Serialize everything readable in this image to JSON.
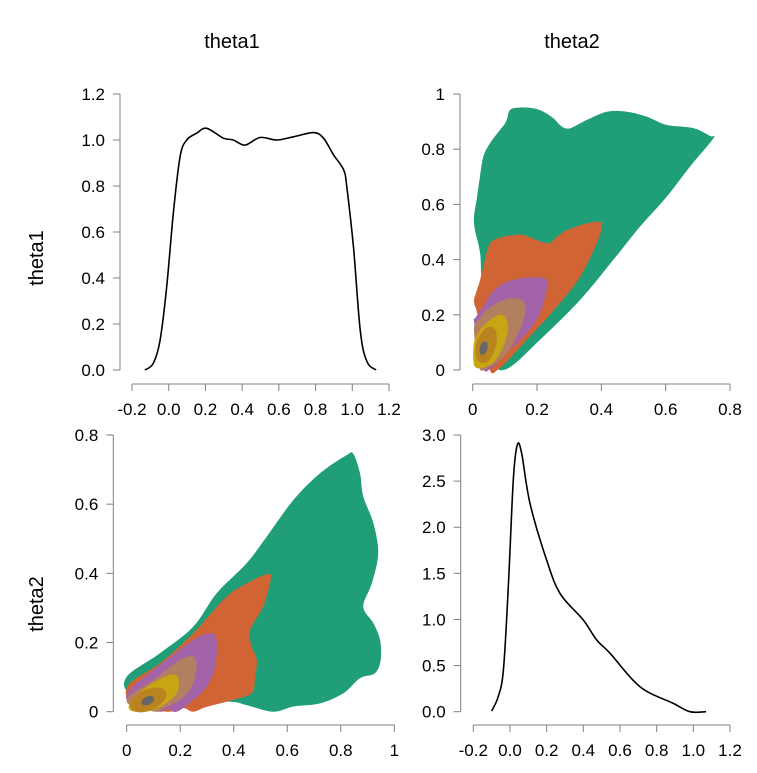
{
  "colors": {
    "levels": [
      "#1f9e78",
      "#d06434",
      "#a363a8",
      "#b27f60",
      "#c8a613",
      "#b98420",
      "#666666"
    ],
    "curve": "#000000",
    "axis": "#808080"
  },
  "chart_data": [
    {
      "panel": "top-left",
      "type": "line",
      "title": "theta1",
      "row_label": "theta1",
      "description": "marginal density of theta1",
      "xlim": [
        -0.2,
        1.2
      ],
      "ylim": [
        0,
        1.2
      ],
      "xticks": [
        "-0.2",
        "0.0",
        "0.2",
        "0.4",
        "0.6",
        "0.8",
        "1.0",
        "1.2"
      ],
      "yticks": [
        "0.0",
        "0.2",
        "0.4",
        "0.6",
        "0.8",
        "1.0",
        "1.2"
      ],
      "x": [
        -0.13,
        -0.084,
        -0.047,
        -0.011,
        0.025,
        0.062,
        0.098,
        0.153,
        0.207,
        0.298,
        0.352,
        0.416,
        0.498,
        0.589,
        0.68,
        0.789,
        0.843,
        0.898,
        0.953,
        0.971,
        1.007,
        1.044,
        1.08,
        1.13
      ],
      "y": [
        0.0,
        0.029,
        0.13,
        0.362,
        0.681,
        0.928,
        1.0,
        1.03,
        1.051,
        1.008,
        1.0,
        0.978,
        1.011,
        1.0,
        1.014,
        1.032,
        1.008,
        0.935,
        0.87,
        0.79,
        0.529,
        0.167,
        0.036,
        0.0
      ]
    },
    {
      "panel": "top-right",
      "type": "area",
      "title": "theta2",
      "description": "filled 2D density contours, x = theta2, y = theta1",
      "xlim": [
        0,
        0.8
      ],
      "ylim": [
        0,
        1
      ],
      "xticks": [
        "0",
        "0.2",
        "0.4",
        "0.6",
        "0.8"
      ],
      "yticks": [
        "0",
        "0.2",
        "0.4",
        "0.6",
        "0.8",
        "1"
      ],
      "levels": [
        {
          "x": [
            0.104,
            0.209,
            0.334,
            0.437,
            0.52,
            0.603,
            0.675,
            0.748,
            0.738,
            0.687,
            0.603,
            0.541,
            0.479,
            0.417,
            0.355,
            0.303,
            0.277,
            0.251,
            0.22,
            0.189,
            0.147,
            0.116,
            0.104,
            0.085,
            0.054,
            0.033,
            0.021,
            0.012,
            0.004,
            0.007,
            0.023,
            0.03,
            0.06
          ],
          "y": [
            0.003,
            0.109,
            0.254,
            0.399,
            0.519,
            0.627,
            0.736,
            0.839,
            0.848,
            0.876,
            0.888,
            0.918,
            0.936,
            0.936,
            0.906,
            0.876,
            0.882,
            0.912,
            0.936,
            0.948,
            0.951,
            0.942,
            0.9,
            0.87,
            0.822,
            0.773,
            0.689,
            0.616,
            0.556,
            0.507,
            0.423,
            0.3,
            0.05
          ]
        },
        {
          "x": [
            0.08,
            0.168,
            0.262,
            0.334,
            0.386,
            0.402,
            0.396,
            0.355,
            0.293,
            0.262,
            0.236,
            0.199,
            0.158,
            0.127,
            0.096,
            0.065,
            0.049,
            0.033,
            0.023,
            0.01,
            0.004,
            0.007,
            0.014,
            0.05
          ],
          "y": [
            0.003,
            0.109,
            0.23,
            0.338,
            0.459,
            0.519,
            0.537,
            0.531,
            0.507,
            0.483,
            0.459,
            0.471,
            0.489,
            0.489,
            0.483,
            0.471,
            0.447,
            0.374,
            0.326,
            0.278,
            0.254,
            0.23,
            0.205,
            0.01
          ]
        },
        {
          "x": [
            0.058,
            0.104,
            0.168,
            0.209,
            0.23,
            0.23,
            0.209,
            0.147,
            0.096,
            0.058,
            0.033,
            0.007,
            0.004,
            0.03
          ],
          "y": [
            0.007,
            0.06,
            0.133,
            0.205,
            0.29,
            0.326,
            0.335,
            0.332,
            0.314,
            0.278,
            0.23,
            0.187,
            0.175,
            0.01
          ]
        },
        {
          "x": [
            0.044,
            0.096,
            0.137,
            0.163,
            0.158,
            0.127,
            0.085,
            0.044,
            0.018,
            0.004,
            0.02
          ],
          "y": [
            0.007,
            0.048,
            0.12,
            0.205,
            0.248,
            0.26,
            0.248,
            0.217,
            0.181,
            0.145,
            0.01
          ]
        },
        {
          "x": [
            0.007,
            0.054,
            0.085,
            0.108,
            0.104,
            0.085,
            0.054,
            0.023,
            0.004
          ],
          "y": [
            0.012,
            0.018,
            0.06,
            0.133,
            0.187,
            0.2,
            0.181,
            0.145,
            0.097
          ]
        },
        {
          "x": [
            0.015,
            0.046,
            0.072,
            0.072,
            0.051,
            0.026,
            0.009
          ],
          "y": [
            0.036,
            0.03,
            0.085,
            0.139,
            0.157,
            0.133,
            0.085
          ]
        },
        {
          "ellipse": {
            "cx": 0.034,
            "cy": 0.079,
            "rx": 0.012,
            "ry": 0.025
          }
        }
      ]
    },
    {
      "panel": "bottom-left",
      "type": "area",
      "row_label": "theta2",
      "description": "filled 2D density contours, x = theta1, y = theta2",
      "xlim": [
        0,
        1
      ],
      "ylim": [
        0,
        0.8
      ],
      "xticks": [
        "0",
        "0.2",
        "0.4",
        "0.6",
        "0.8",
        "1"
      ],
      "yticks": [
        "0",
        "0.2",
        "0.4",
        "0.6",
        "0.8"
      ],
      "levels": [
        {
          "x": [
            0.0,
            0.124,
            0.249,
            0.336,
            0.448,
            0.523,
            0.623,
            0.722,
            0.822,
            0.847,
            0.872,
            0.884,
            0.922,
            0.94,
            0.916,
            0.884,
            0.922,
            0.947,
            0.949,
            0.928,
            0.872,
            0.809,
            0.722,
            0.623,
            0.548,
            0.448,
            0.386,
            0.2,
            0.02
          ],
          "y": [
            0.101,
            0.169,
            0.246,
            0.342,
            0.429,
            0.506,
            0.612,
            0.689,
            0.742,
            0.745,
            0.689,
            0.622,
            0.545,
            0.458,
            0.371,
            0.304,
            0.256,
            0.207,
            0.15,
            0.111,
            0.097,
            0.053,
            0.024,
            0.015,
            0.0,
            0.019,
            0.029,
            0.03,
            0.05
          ]
        },
        {
          "x": [
            0.006,
            0.124,
            0.249,
            0.374,
            0.473,
            0.529,
            0.538,
            0.51,
            0.461,
            0.467,
            0.486,
            0.479,
            0.467,
            0.398,
            0.299,
            0.249,
            0.212,
            0.15,
            0.02
          ],
          "y": [
            0.077,
            0.14,
            0.227,
            0.333,
            0.381,
            0.398,
            0.381,
            0.304,
            0.236,
            0.188,
            0.15,
            0.092,
            0.053,
            0.034,
            0.014,
            0.0,
            0.01,
            0.0,
            0.02
          ]
        },
        {
          "x": [
            0.006,
            0.124,
            0.249,
            0.311,
            0.336,
            0.33,
            0.299,
            0.249,
            0.187,
            0.149,
            0.124,
            0.02
          ],
          "y": [
            0.058,
            0.135,
            0.207,
            0.227,
            0.207,
            0.13,
            0.072,
            0.034,
            0.0,
            0.01,
            0.0,
            0.02
          ]
        },
        {
          "x": [
            0.006,
            0.1,
            0.199,
            0.249,
            0.261,
            0.243,
            0.199,
            0.137,
            0.112,
            0.02
          ],
          "y": [
            0.043,
            0.092,
            0.15,
            0.159,
            0.13,
            0.072,
            0.034,
            0.01,
            0.0,
            0.015
          ]
        },
        {
          "x": [
            0.012,
            0.075,
            0.162,
            0.193,
            0.187,
            0.137,
            0.087,
            0.019
          ],
          "y": [
            0.024,
            0.072,
            0.106,
            0.096,
            0.053,
            0.019,
            0.002,
            0.002
          ]
        },
        {
          "ellipse": {
            "cx": 0.081,
            "cy": 0.034,
            "rx": 0.072,
            "ry": 0.03
          }
        },
        {
          "ellipse": {
            "cx": 0.079,
            "cy": 0.032,
            "rx": 0.025,
            "ry": 0.012
          }
        }
      ]
    },
    {
      "panel": "bottom-right",
      "type": "line",
      "description": "marginal density of theta2",
      "xlim": [
        -0.2,
        1.2
      ],
      "ylim": [
        0,
        3.0
      ],
      "xticks": [
        "-0.2",
        "0.0",
        "0.2",
        "0.4",
        "0.6",
        "0.8",
        "1.0",
        "1.2"
      ],
      "yticks": [
        "0.0",
        "0.5",
        "1.0",
        "1.5",
        "2.0",
        "2.5",
        "3.0"
      ],
      "x": [
        -0.1,
        -0.064,
        -0.036,
        -0.009,
        0.018,
        0.04,
        0.064,
        0.109,
        0.2,
        0.273,
        0.4,
        0.473,
        0.546,
        0.709,
        0.891,
        0.982,
        1.069
      ],
      "y": [
        0.007,
        0.163,
        0.452,
        1.356,
        2.514,
        2.893,
        2.8,
        2.259,
        1.645,
        1.283,
        0.994,
        0.777,
        0.633,
        0.271,
        0.09,
        0.0,
        0.0
      ]
    }
  ]
}
